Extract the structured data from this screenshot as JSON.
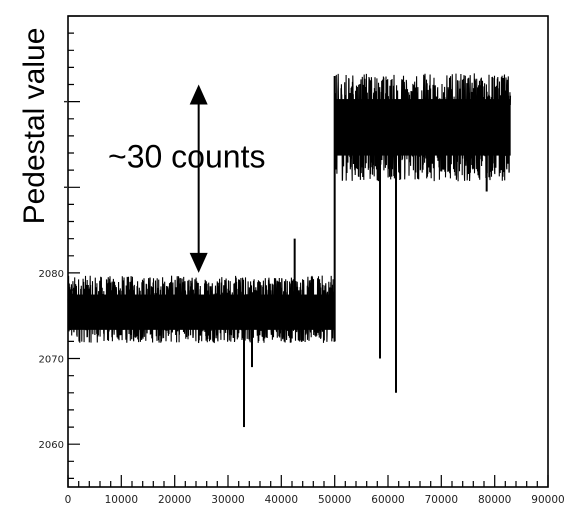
{
  "chart_data": {
    "type": "line",
    "ylabel": "Pedestal value",
    "xlabel": "",
    "xlim": [
      0,
      90000
    ],
    "ylim": [
      2055,
      2110
    ],
    "x_ticks": [
      0,
      10000,
      20000,
      30000,
      40000,
      50000,
      60000,
      70000,
      80000,
      90000
    ],
    "x_tick_labels": [
      "0",
      "10000",
      "20000",
      "30000",
      "40000",
      "50000",
      "60000",
      "70000",
      "80000",
      "90000"
    ],
    "y_ticks": [
      2060,
      2070,
      2080,
      2090,
      2100
    ],
    "y_tick_labels": [
      "2060",
      "2070",
      "2080",
      "",
      ""
    ],
    "series": [
      {
        "segments": [
          {
            "x_range": [
              0,
              50000
            ],
            "mean": 2075,
            "low": 2072,
            "high": 2079.5
          },
          {
            "x_range": [
              50000,
              83000
            ],
            "mean": 2097,
            "low": 2091,
            "high": 2103
          }
        ],
        "spikes": [
          {
            "x": 33000,
            "y": 2062
          },
          {
            "x": 34500,
            "y": 2069
          },
          {
            "x": 42500,
            "y": 2084
          },
          {
            "x": 58500,
            "y": 2070
          },
          {
            "x": 61500,
            "y": 2066
          },
          {
            "x": 78500,
            "y": 2089.5
          }
        ],
        "color": "#000000"
      }
    ],
    "annotations": [
      {
        "text": "~30 counts",
        "arrow_from_y": 2102,
        "arrow_to_y": 2080
      }
    ],
    "grid": false
  }
}
